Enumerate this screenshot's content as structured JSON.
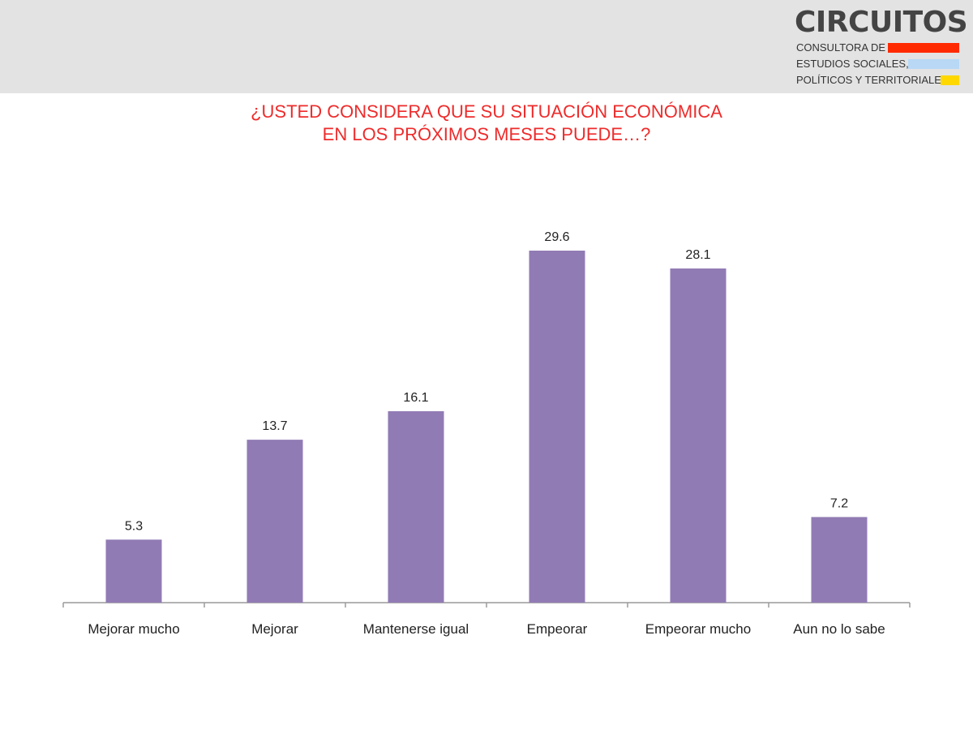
{
  "logo": {
    "name": "CIRCUITOS",
    "lines": [
      "CONSULTORA DE",
      "ESTUDIOS SOCIALES,",
      "POLÍTICOS Y TERRITORIALES"
    ],
    "stripe_colors": [
      "#ff2a00",
      "#b8d8f5",
      "#ffd800"
    ]
  },
  "chart_data": {
    "type": "bar",
    "title_lines": [
      "¿USTED CONSIDERA QUE SU SITUACIÓN ECONÓMICA",
      "EN LOS PRÓXIMOS MESES PUEDE…?"
    ],
    "categories": [
      "Mejorar mucho",
      "Mejorar",
      "Mantenerse igual",
      "Empeorar",
      "Empeorar mucho",
      "Aun no lo sabe"
    ],
    "values": [
      5.3,
      13.7,
      16.1,
      29.6,
      28.1,
      7.2
    ],
    "ylim": [
      0,
      29.6
    ],
    "grid": false,
    "legend": "none",
    "bar_color": "#917bb4",
    "title_color": "#ee2b2b"
  }
}
